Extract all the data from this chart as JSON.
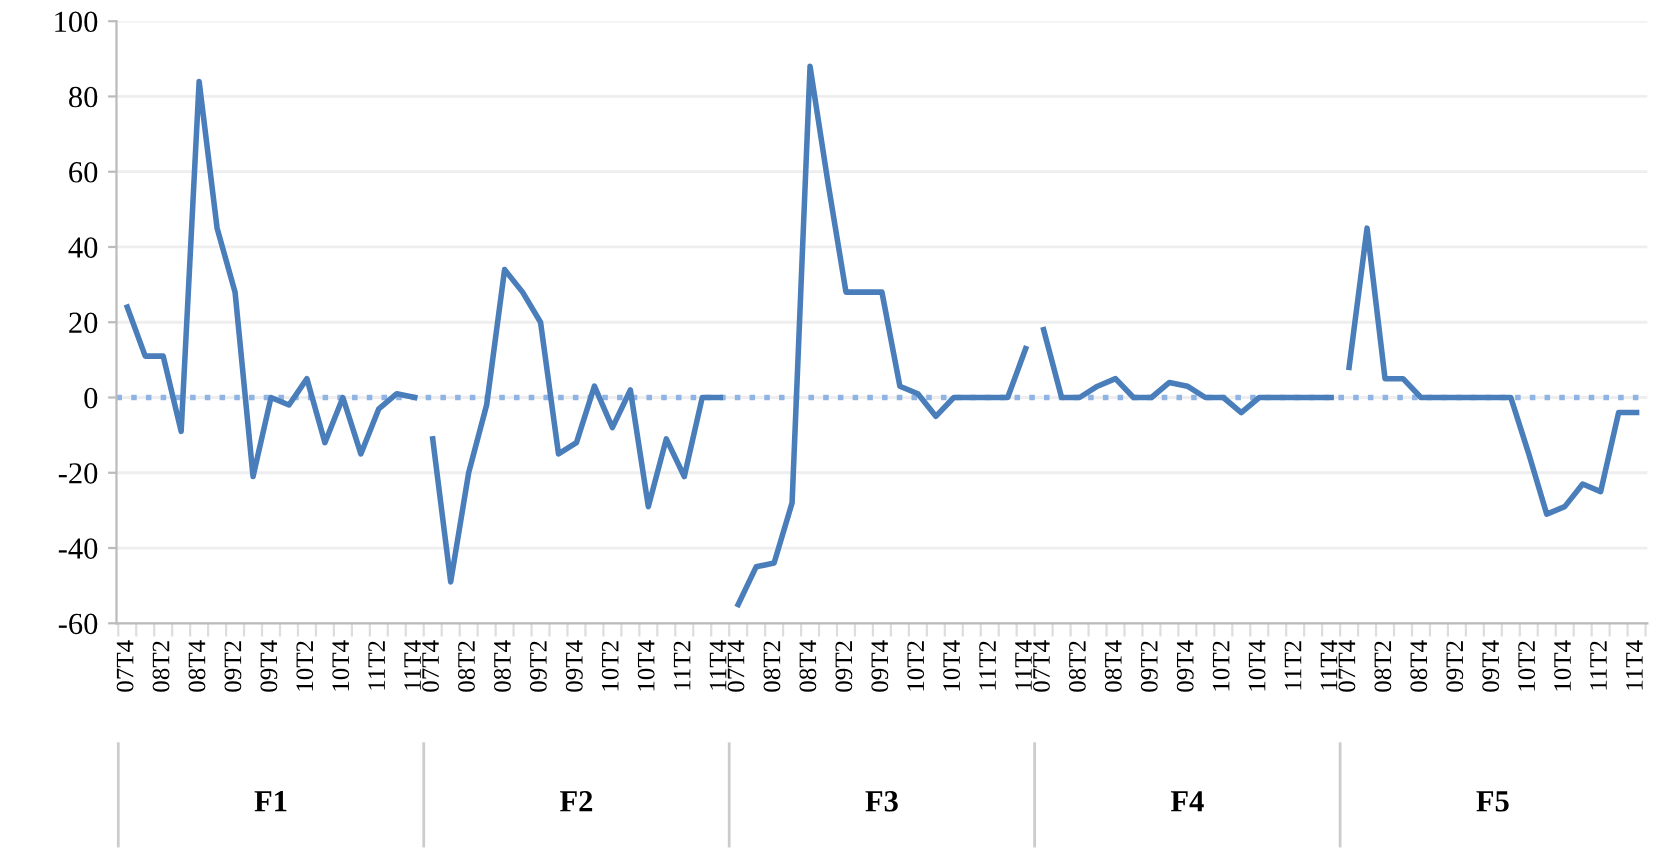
{
  "chart_data": {
    "type": "line",
    "categories": [
      "07T4",
      null,
      "08T2",
      null,
      "08T4",
      null,
      "09T2",
      null,
      "09T4",
      null,
      "10T2",
      null,
      "10T4",
      null,
      "11T2",
      null,
      "11T4",
      "07T4",
      null,
      "08T2",
      null,
      "08T4",
      null,
      "09T2",
      null,
      "09T4",
      null,
      "10T2",
      null,
      "10T4",
      null,
      "11T2",
      null,
      "11T4",
      "07T4",
      null,
      "08T2",
      null,
      "08T4",
      null,
      "09T2",
      null,
      "09T4",
      null,
      "10T2",
      null,
      "10T4",
      null,
      "11T2",
      null,
      "11T4",
      "07T4",
      null,
      "08T2",
      null,
      "08T4",
      null,
      "09T2",
      null,
      "09T4",
      null,
      "10T2",
      null,
      "10T4",
      null,
      "11T2",
      null,
      "11T4",
      "07T4",
      null,
      "08T2",
      null,
      "08T4",
      null,
      "09T2",
      null,
      "09T4",
      null,
      "10T2",
      null,
      "10T4",
      null,
      "11T2",
      null,
      "11T4"
    ],
    "series": [
      {
        "color": "#4a7ebb",
        "values": [
          24,
          11,
          11,
          -9,
          84,
          45,
          28,
          -21,
          0,
          -2,
          5,
          -12,
          0,
          -15,
          -3,
          1,
          0,
          -11,
          -49,
          -20,
          -2,
          34,
          28,
          20,
          -15,
          -12,
          3,
          -8,
          2,
          -29,
          -11,
          -21,
          0,
          0,
          -55,
          -45,
          -44,
          -28,
          88,
          57,
          28,
          28,
          28,
          3,
          1,
          -5,
          0,
          0,
          0,
          0,
          13,
          18,
          0,
          0,
          3,
          5,
          0,
          0,
          4,
          3,
          0,
          0,
          -4,
          0,
          0,
          0,
          0,
          0,
          8,
          45,
          5,
          5,
          0,
          0,
          0,
          0,
          0,
          0,
          -15,
          -31,
          -29,
          -23,
          -25,
          -4,
          -4
        ]
      }
    ],
    "annotations": [
      "F1",
      "F2",
      "F3",
      "F4",
      "F5"
    ],
    "ylim": [
      -60,
      100
    ],
    "yticks": [
      -60,
      -40,
      -20,
      0,
      20,
      40,
      60,
      80,
      100
    ],
    "grid": "y",
    "line_style": "solid",
    "ref_lines": [
      {
        "axis": "y",
        "value": 0,
        "color": "#8fb4e3",
        "line_style": "dotted"
      }
    ]
  }
}
